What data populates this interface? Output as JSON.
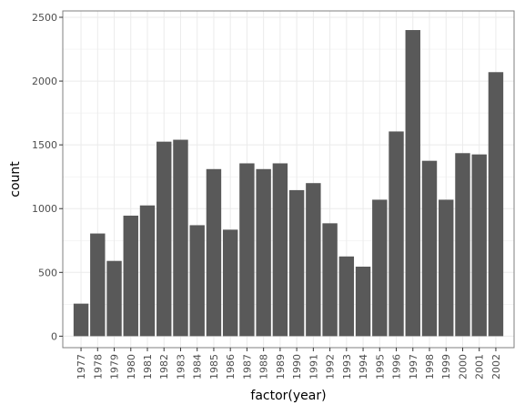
{
  "chart_data": {
    "type": "bar",
    "xlabel": "factor(year)",
    "ylabel": "count",
    "ylim": [
      -90,
      2550
    ],
    "yticks": [
      0,
      500,
      1000,
      1500,
      2000,
      2500
    ],
    "ytick_labels": [
      "0",
      "500",
      "1000",
      "1500",
      "2000",
      "2500"
    ],
    "grid": true,
    "legend": "none",
    "categories": [
      "1977",
      "1978",
      "1979",
      "1980",
      "1981",
      "1982",
      "1983",
      "1984",
      "1985",
      "1986",
      "1987",
      "1988",
      "1989",
      "1990",
      "1991",
      "1992",
      "1993",
      "1994",
      "1995",
      "1996",
      "1997",
      "1998",
      "1999",
      "2000",
      "2001",
      "2002"
    ],
    "values": [
      255,
      805,
      590,
      945,
      1025,
      1525,
      1540,
      870,
      1310,
      835,
      1355,
      1310,
      1355,
      1145,
      1200,
      885,
      625,
      545,
      1070,
      1605,
      2400,
      1375,
      1070,
      1435,
      1425,
      2070
    ],
    "bar_color": "#595959",
    "panel_border_color": "#7f7f7f",
    "grid_color": "#ebebeb"
  }
}
